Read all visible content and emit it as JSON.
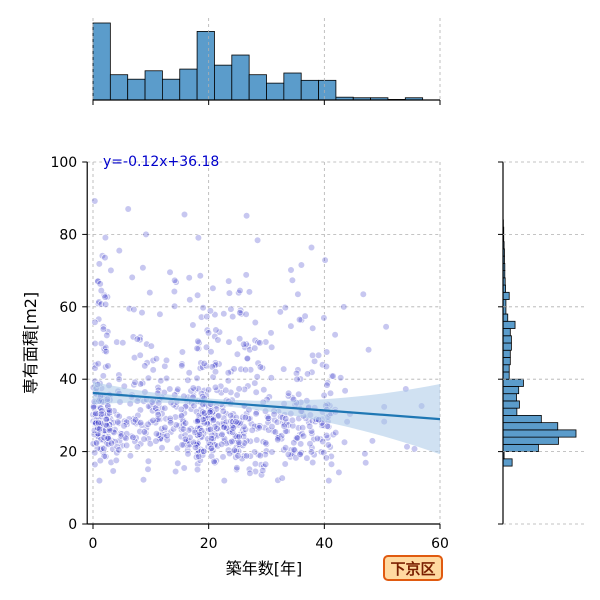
{
  "chart_data": [
    {
      "type": "scatter",
      "panel": "joint",
      "xlabel": "築年数[年]",
      "ylabel": "専有面積[m2]",
      "xlim": [
        -1,
        60
      ],
      "ylim": [
        0,
        100
      ],
      "x_ticks": [
        0,
        20,
        40,
        60
      ],
      "y_ticks": [
        0,
        20,
        40,
        60,
        80,
        100
      ],
      "grid": true,
      "point_color": "#3535c8",
      "approx_point_count": 900,
      "regression": {
        "slope": -0.12,
        "intercept": 36.18,
        "color": "#1f77b4",
        "ci_band": true
      },
      "annotation": "y=-0.12x+36.18"
    },
    {
      "type": "bar",
      "panel": "marginal-x-histogram",
      "bin_edges": [
        0,
        3,
        6,
        9,
        12,
        15,
        18,
        21,
        24,
        27,
        30,
        33,
        36,
        39,
        42,
        45,
        48,
        51,
        54,
        57,
        60
      ],
      "counts": [
        137,
        45,
        37,
        52,
        37,
        55,
        122,
        62,
        80,
        45,
        30,
        48,
        35,
        35,
        5,
        4,
        4,
        1,
        4,
        0
      ]
    },
    {
      "type": "bar",
      "panel": "marginal-y-histogram",
      "bin_edges": [
        16,
        18,
        20,
        22,
        24,
        26,
        28,
        30,
        32,
        34,
        36,
        38,
        40,
        42,
        44,
        46,
        48,
        50,
        52,
        54,
        56,
        58,
        60,
        62,
        64,
        66,
        68,
        70,
        72,
        74,
        76,
        78,
        80,
        82,
        84
      ],
      "counts": [
        25,
        3,
        97,
        152,
        200,
        150,
        105,
        38,
        45,
        37,
        43,
        56,
        17,
        17,
        20,
        20,
        23,
        23,
        20,
        33,
        13,
        8,
        8,
        17,
        7,
        6,
        5,
        5,
        4,
        4,
        3,
        2,
        2,
        1
      ]
    }
  ],
  "colors": {
    "bar_fill": "#5b9ccb",
    "regression": "#1f77b4",
    "ci_band": "#a9c8e8",
    "grid": "#b0b0b0"
  },
  "ward_label": "下京区"
}
